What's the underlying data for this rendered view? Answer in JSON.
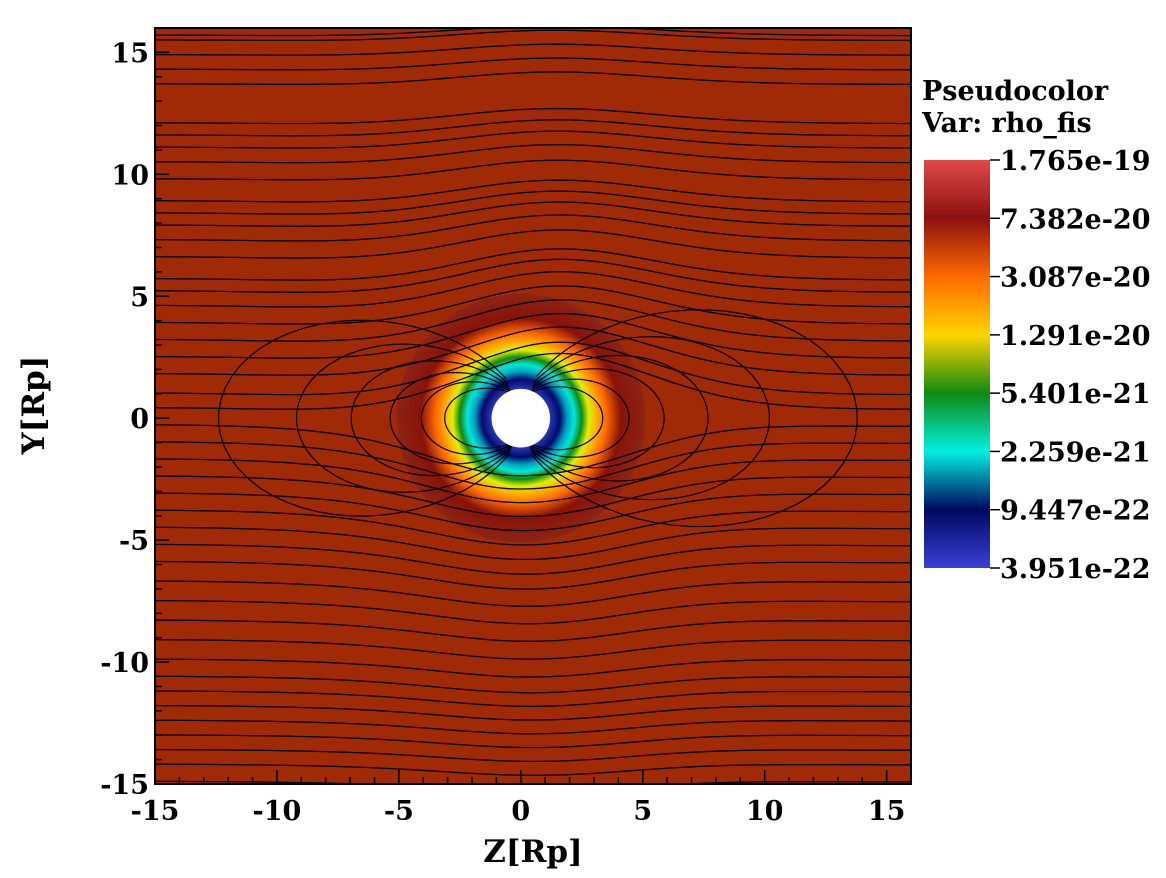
{
  "chart_data": {
    "type": "heatmap",
    "title": "",
    "xlabel": "Z[Rp]",
    "ylabel": "Y[Rp]",
    "xlim": [
      -15,
      16
    ],
    "ylim": [
      -15,
      16
    ],
    "xticks": [
      -15,
      -10,
      -5,
      0,
      5,
      10,
      15
    ],
    "yticks": [
      15,
      10,
      5,
      0,
      -5,
      -10,
      -15
    ],
    "xtick_labels": [
      "-15",
      "-10",
      "-5",
      "0",
      "5",
      "10",
      "15"
    ],
    "ytick_labels": [
      "15",
      "10",
      "5",
      "0",
      "-5",
      "-10",
      "-15"
    ],
    "field": {
      "background_value": 7.382e-20,
      "background_color": "#a02a05",
      "planet_radius": 1.2,
      "shell_radius_inner": 1.2,
      "shell_radius_outer": 5.1,
      "shell_profile": [
        {
          "r": 1.2,
          "color": "#2a35b8"
        },
        {
          "r": 1.6,
          "color": "#000a6a"
        },
        {
          "r": 1.9,
          "color": "#00a0c0"
        },
        {
          "r": 2.2,
          "color": "#00e8d8"
        },
        {
          "r": 2.5,
          "color": "#108a10"
        },
        {
          "r": 2.8,
          "color": "#e0f000"
        },
        {
          "r": 3.1,
          "color": "#ffb000"
        },
        {
          "r": 3.5,
          "color": "#ff6a00"
        },
        {
          "r": 4.1,
          "color": "#8a1208"
        },
        {
          "r": 5.1,
          "color": "#8c2415"
        }
      ]
    },
    "streamlines_y_start": [
      15.7,
      15.5,
      14.9,
      14.3,
      13.7,
      12.1,
      11.6,
      11.1,
      10.5,
      9.8,
      8.9,
      8.4,
      7.9,
      7.3,
      6.6,
      5.7,
      5.2,
      4.6,
      3.9,
      3.2,
      2.5,
      1.8,
      1.0,
      0.4,
      -0.3,
      -1.0,
      -1.7,
      -2.4,
      -3.1,
      -3.8,
      -4.5,
      -5.2,
      -5.9,
      -6.7,
      -7.5,
      -8.3,
      -9.1,
      -9.9,
      -10.6,
      -11.2,
      -11.8,
      -12.4,
      -13.0,
      -13.6,
      -14.2,
      -14.9,
      -15.3
    ],
    "dipole_lines": [
      1.2,
      1.8,
      2.6,
      3.6,
      5.0,
      7.0
    ],
    "colorbar": {
      "title_line1": "Pseudocolor",
      "title_line2": "Var: rho_fis",
      "tick_labels": [
        "1.765e-19",
        "7.382e-20",
        "3.087e-20",
        "1.291e-20",
        "5.401e-21",
        "2.259e-21",
        "9.447e-22",
        "3.951e-22"
      ],
      "scale": "log",
      "colors": [
        "#e04a48",
        "#8c1010",
        "#ff6a00",
        "#ffd400",
        "#108a10",
        "#00f0e0",
        "#000860",
        "#3a40d8"
      ]
    }
  }
}
